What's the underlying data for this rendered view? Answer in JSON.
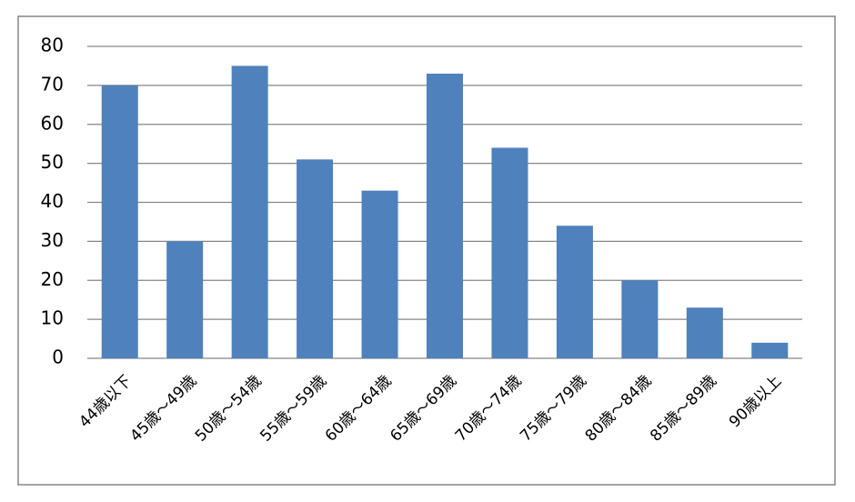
{
  "chart_data": {
    "type": "bar",
    "categories": [
      "44歳以下",
      "45歳～49歳",
      "50歳～54歳",
      "55歳～59歳",
      "60歳～64歳",
      "65歳～69歳",
      "70歳～74歳",
      "75歳～79歳",
      "80歳～84歳",
      "85歳～89歳",
      "90歳以上"
    ],
    "values": [
      70,
      30,
      75,
      51,
      43,
      73,
      54,
      34,
      20,
      13,
      4
    ],
    "color": "#4f81bd",
    "ylim": [
      0,
      80
    ],
    "yticks": [
      0,
      10,
      20,
      30,
      40,
      50,
      60,
      70,
      80
    ],
    "grid": true
  }
}
